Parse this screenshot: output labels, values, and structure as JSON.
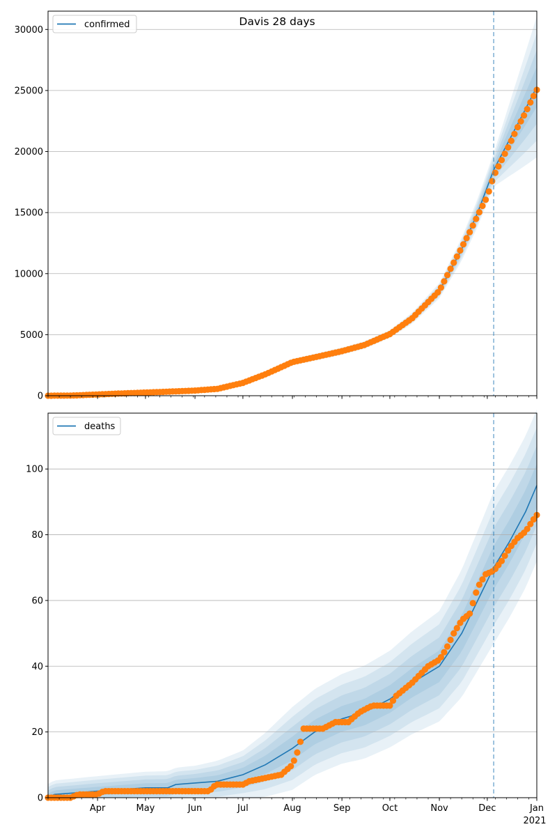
{
  "figure_title": "Davis 28 days",
  "chart_data": [
    {
      "type": "line",
      "title": "Davis 28 days",
      "legend": {
        "position": "upper-left",
        "entries": [
          "confirmed"
        ]
      },
      "x_tick_labels": [
        "Apr",
        "May",
        "Jun",
        "Jul",
        "Aug",
        "Sep",
        "Oct",
        "Nov",
        "Dec",
        "Jan"
      ],
      "x_tick_dates": [
        "2020-04-01",
        "2020-05-01",
        "2020-06-01",
        "2020-07-01",
        "2020-08-01",
        "2020-09-01",
        "2020-10-01",
        "2020-11-01",
        "2020-12-01",
        "2021-01-01"
      ],
      "x_year_label": "2021",
      "xlim": [
        "2020-03-01",
        "2021-01-01"
      ],
      "forecast_start": "2020-12-05",
      "ylim": [
        0,
        31500
      ],
      "y_ticks": [
        0,
        5000,
        10000,
        15000,
        20000,
        25000,
        30000
      ],
      "grid": "horizontal",
      "series": [
        {
          "name": "confirmed",
          "color": "#1f77b4",
          "kind": "line",
          "points": [
            [
              "2020-03-01",
              0
            ],
            [
              "2020-03-15",
              10
            ],
            [
              "2020-04-01",
              100
            ],
            [
              "2020-04-15",
              180
            ],
            [
              "2020-05-01",
              260
            ],
            [
              "2020-05-15",
              330
            ],
            [
              "2020-06-01",
              420
            ],
            [
              "2020-06-15",
              560
            ],
            [
              "2020-07-01",
              1050
            ],
            [
              "2020-07-15",
              1750
            ],
            [
              "2020-08-01",
              2750
            ],
            [
              "2020-08-15",
              3150
            ],
            [
              "2020-09-01",
              3650
            ],
            [
              "2020-09-15",
              4150
            ],
            [
              "2020-10-01",
              5050
            ],
            [
              "2020-10-15",
              6350
            ],
            [
              "2020-11-01",
              8600
            ],
            [
              "2020-11-15",
              12000
            ],
            [
              "2020-11-25",
              15000
            ],
            [
              "2020-12-05",
              18500
            ],
            [
              "2020-12-15",
              21000
            ],
            [
              "2020-12-25",
              23500
            ],
            [
              "2021-01-01",
              25300
            ]
          ],
          "band_scales": [
            0.3,
            0.55,
            0.8,
            1.05
          ],
          "band_width_points": [
            [
              "2020-03-01",
              0
            ],
            [
              "2020-06-15",
              80
            ],
            [
              "2020-08-01",
              250
            ],
            [
              "2020-10-01",
              300
            ],
            [
              "2020-11-01",
              600
            ],
            [
              "2020-12-05",
              1300
            ],
            [
              "2021-01-01",
              5500
            ]
          ]
        },
        {
          "name": "",
          "color": "#ff7f0e",
          "kind": "markers",
          "points": [
            [
              "2020-03-01",
              0
            ],
            [
              "2020-03-15",
              10
            ],
            [
              "2020-04-01",
              100
            ],
            [
              "2020-04-15",
              180
            ],
            [
              "2020-05-01",
              260
            ],
            [
              "2020-05-15",
              330
            ],
            [
              "2020-06-01",
              420
            ],
            [
              "2020-06-15",
              560
            ],
            [
              "2020-07-01",
              1050
            ],
            [
              "2020-07-15",
              1750
            ],
            [
              "2020-08-01",
              2750
            ],
            [
              "2020-08-15",
              3150
            ],
            [
              "2020-09-01",
              3650
            ],
            [
              "2020-09-15",
              4150
            ],
            [
              "2020-10-01",
              5050
            ],
            [
              "2020-10-15",
              6350
            ],
            [
              "2020-11-01",
              8600
            ],
            [
              "2020-11-10",
              10900
            ],
            [
              "2020-11-20",
              13400
            ],
            [
              "2020-11-27",
              15300
            ],
            [
              "2020-12-01",
              16300
            ],
            [
              "2020-12-05",
              18000
            ],
            [
              "2020-12-10",
              19300
            ],
            [
              "2020-12-15",
              20600
            ],
            [
              "2020-12-20",
              22000
            ],
            [
              "2020-12-25",
              23200
            ],
            [
              "2020-12-29",
              24300
            ],
            [
              "2021-01-01",
              25050
            ]
          ]
        }
      ]
    },
    {
      "type": "line",
      "title": "",
      "legend": {
        "position": "upper-left",
        "entries": [
          "deaths"
        ]
      },
      "x_tick_labels": [
        "Apr",
        "May",
        "Jun",
        "Jul",
        "Aug",
        "Sep",
        "Oct",
        "Nov",
        "Dec",
        "Jan"
      ],
      "x_tick_dates": [
        "2020-04-01",
        "2020-05-01",
        "2020-06-01",
        "2020-07-01",
        "2020-08-01",
        "2020-09-01",
        "2020-10-01",
        "2020-11-01",
        "2020-12-01",
        "2021-01-01"
      ],
      "x_year_label": "2021",
      "xlim": [
        "2020-03-01",
        "2021-01-01"
      ],
      "forecast_start": "2020-12-05",
      "ylim": [
        0,
        117
      ],
      "y_ticks": [
        0,
        20,
        40,
        60,
        80,
        100
      ],
      "grid": "horizontal",
      "series": [
        {
          "name": "deaths",
          "color": "#1f77b4",
          "kind": "line",
          "points": [
            [
              "2020-03-01",
              0
            ],
            [
              "2020-03-05",
              1
            ],
            [
              "2020-04-01",
              2
            ],
            [
              "2020-05-01",
              3
            ],
            [
              "2020-05-15",
              3
            ],
            [
              "2020-05-20",
              4
            ],
            [
              "2020-06-15",
              5
            ],
            [
              "2020-07-01",
              7
            ],
            [
              "2020-07-15",
              10
            ],
            [
              "2020-08-01",
              15
            ],
            [
              "2020-08-15",
              20
            ],
            [
              "2020-09-01",
              24
            ],
            [
              "2020-09-15",
              26
            ],
            [
              "2020-10-01",
              30
            ],
            [
              "2020-10-15",
              35
            ],
            [
              "2020-11-01",
              40
            ],
            [
              "2020-11-15",
              50
            ],
            [
              "2020-12-01",
              66
            ],
            [
              "2020-12-05",
              70
            ],
            [
              "2020-12-15",
              78
            ],
            [
              "2020-12-25",
              87
            ],
            [
              "2021-01-01",
              95
            ]
          ],
          "band_scales": [
            0.3,
            0.55,
            0.8,
            1.05
          ],
          "band_width_points": [
            [
              "2020-03-01",
              4
            ],
            [
              "2020-06-01",
              5
            ],
            [
              "2020-07-01",
              7
            ],
            [
              "2020-08-01",
              12
            ],
            [
              "2020-09-01",
              13
            ],
            [
              "2020-10-01",
              14
            ],
            [
              "2020-11-01",
              16
            ],
            [
              "2020-12-05",
              22
            ],
            [
              "2021-01-01",
              22
            ]
          ]
        },
        {
          "name": "",
          "color": "#ff7f0e",
          "kind": "markers",
          "points": [
            [
              "2020-03-01",
              0
            ],
            [
              "2020-03-15",
              0
            ],
            [
              "2020-03-20",
              1
            ],
            [
              "2020-04-01",
              1
            ],
            [
              "2020-04-05",
              2
            ],
            [
              "2020-05-15",
              2
            ],
            [
              "2020-06-01",
              2
            ],
            [
              "2020-06-10",
              2
            ],
            [
              "2020-06-14",
              4
            ],
            [
              "2020-07-01",
              4
            ],
            [
              "2020-07-05",
              5
            ],
            [
              "2020-07-15",
              6
            ],
            [
              "2020-07-25",
              7
            ],
            [
              "2020-08-01",
              10
            ],
            [
              "2020-08-05",
              15
            ],
            [
              "2020-08-08",
              21
            ],
            [
              "2020-08-20",
              21
            ],
            [
              "2020-08-28",
              23
            ],
            [
              "2020-09-05",
              23
            ],
            [
              "2020-09-12",
              26
            ],
            [
              "2020-09-20",
              28
            ],
            [
              "2020-10-01",
              28
            ],
            [
              "2020-10-05",
              31
            ],
            [
              "2020-10-15",
              35
            ],
            [
              "2020-10-25",
              40
            ],
            [
              "2020-11-01",
              42
            ],
            [
              "2020-11-05",
              45
            ],
            [
              "2020-11-10",
              50
            ],
            [
              "2020-11-15",
              54
            ],
            [
              "2020-11-20",
              56
            ],
            [
              "2020-11-25",
              64
            ],
            [
              "2020-11-30",
              68
            ],
            [
              "2020-12-05",
              69
            ],
            [
              "2020-12-10",
              72
            ],
            [
              "2020-12-15",
              76
            ],
            [
              "2020-12-20",
              79
            ],
            [
              "2020-12-25",
              81
            ],
            [
              "2020-12-29",
              84
            ],
            [
              "2021-01-01",
              86
            ]
          ]
        }
      ]
    }
  ]
}
